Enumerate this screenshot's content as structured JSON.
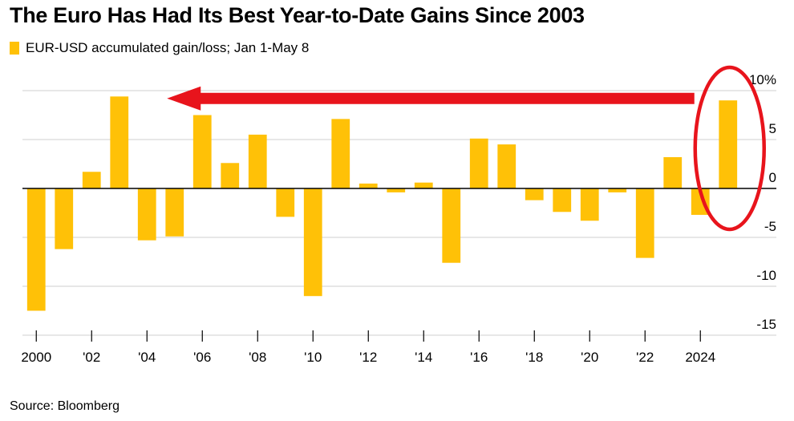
{
  "title": "The Euro Has Had Its Best Year-to-Date Gains Since 2003",
  "legend": {
    "label": "EUR-USD accumulated gain/loss; Jan 1-May 8",
    "color": "#FFC107"
  },
  "source": "Source: Bloomberg",
  "colors": {
    "bar": "#FFC107",
    "grid": "#cfcfcf",
    "zero_line": "#000000",
    "annotation": "#e8141c"
  },
  "annotations": [
    {
      "type": "arrow",
      "from_year": 2023,
      "to_year": 2004,
      "value": 9.2,
      "color": "#e8141c",
      "meaning": "points from 2025 back to 2003"
    },
    {
      "type": "ellipse",
      "year": 2025,
      "color": "#e8141c",
      "meaning": "highlights 2025 bar"
    }
  ],
  "chart_data": {
    "type": "bar",
    "title": "The Euro Has Had Its Best Year-to-Date Gains Since 2003",
    "series": [
      {
        "name": "EUR-USD accumulated gain/loss; Jan 1-May 8",
        "x": [
          2000,
          2001,
          2002,
          2003,
          2004,
          2005,
          2006,
          2007,
          2008,
          2009,
          2010,
          2011,
          2012,
          2013,
          2014,
          2015,
          2016,
          2017,
          2018,
          2019,
          2020,
          2021,
          2022,
          2023,
          2024,
          2025
        ],
        "values": [
          -12.5,
          -6.2,
          1.7,
          9.4,
          -5.3,
          -4.9,
          7.5,
          2.6,
          5.5,
          -2.9,
          -11.0,
          7.1,
          0.5,
          -0.4,
          0.6,
          -7.6,
          5.1,
          4.5,
          -1.2,
          -2.4,
          -3.3,
          -0.4,
          -7.1,
          3.2,
          -2.7,
          9.0
        ]
      }
    ],
    "x_tick_labels": [
      "2000",
      "'02",
      "'04",
      "'06",
      "'08",
      "'10",
      "'12",
      "'14",
      "'16",
      "'18",
      "'20",
      "'22",
      "2024"
    ],
    "x_tick_years": [
      2000,
      2002,
      2004,
      2006,
      2008,
      2010,
      2012,
      2014,
      2016,
      2018,
      2020,
      2022,
      2024
    ],
    "y_ticks": [
      10,
      5,
      0,
      -5,
      -10,
      -15
    ],
    "y_tick_labels": [
      "10%",
      "5",
      "0",
      "-5",
      "-10",
      "-15"
    ],
    "ylim": [
      -15,
      10
    ],
    "xlabel": "",
    "ylabel": "",
    "grid": true,
    "y_axis_side": "right"
  }
}
